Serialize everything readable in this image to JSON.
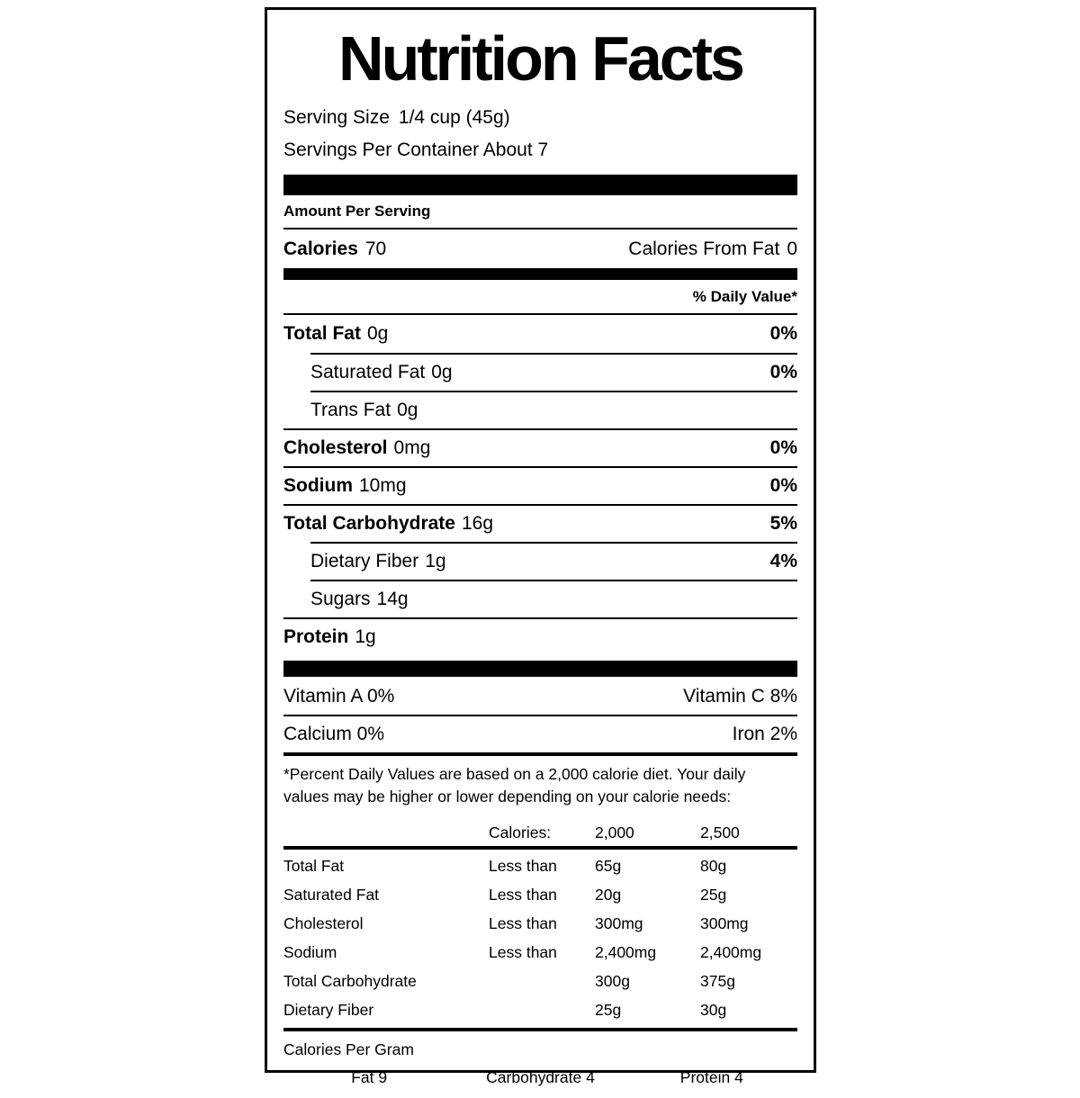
{
  "label": {
    "title": "Nutrition Facts",
    "serving_size": {
      "label": "Serving Size",
      "value": "1/4 cup (45g)"
    },
    "servings_per_container": "Servings Per Container About 7",
    "amount_per_serving": "Amount Per Serving",
    "calories": {
      "label": "Calories",
      "value": "70"
    },
    "calories_from_fat": {
      "label": "Calories From Fat",
      "value": "0"
    },
    "daily_value_header": "% Daily Value*",
    "nutrients": [
      {
        "name": "Total Fat",
        "amount": "0g",
        "dv": "0%"
      },
      {
        "name": "Saturated Fat",
        "amount": "0g",
        "dv": "0%"
      },
      {
        "name": "Trans Fat",
        "amount": "0g"
      },
      {
        "name": "Cholesterol",
        "amount": "0mg",
        "dv": "0%"
      },
      {
        "name": "Sodium",
        "amount": "10mg",
        "dv": "0%"
      },
      {
        "name": "Total Carbohydrate",
        "amount": "16g",
        "dv": "5%"
      },
      {
        "name": "Dietary Fiber",
        "amount": "1g",
        "dv": "4%"
      },
      {
        "name": "Sugars",
        "amount": "14g"
      },
      {
        "name": "Protein",
        "amount": "1g"
      }
    ],
    "vitamins": [
      {
        "left": "Vitamin A 0%",
        "right": "Vitamin C 8%"
      },
      {
        "left": "Calcium 0%",
        "right": "Iron 2%"
      }
    ],
    "footnote_line1": "*Percent Daily Values are based on a 2,000 calorie diet. Your daily",
    "footnote_line2": "values may be higher or lower depending on your calorie needs:",
    "reference_table": {
      "header": {
        "calories_label": "Calories:",
        "col_2000": "2,000",
        "col_2500": "2,500"
      },
      "rows": [
        {
          "name": "Total Fat",
          "qualifier": "Less than",
          "v2000": "65g",
          "v2500": "80g"
        },
        {
          "name": "Saturated Fat",
          "qualifier": "Less than",
          "v2000": "20g",
          "v2500": "25g"
        },
        {
          "name": "Cholesterol",
          "qualifier": "Less than",
          "v2000": "300mg",
          "v2500": "300mg"
        },
        {
          "name": "Sodium",
          "qualifier": "Less than",
          "v2000": "2,400mg",
          "v2500": "2,400mg"
        },
        {
          "name": "Total Carbohydrate",
          "qualifier": "",
          "v2000": "300g",
          "v2500": "375g"
        },
        {
          "name": "Dietary Fiber",
          "qualifier": "",
          "v2000": "25g",
          "v2500": "30g"
        }
      ]
    },
    "calories_per_gram": {
      "title": "Calories Per Gram",
      "fat": "Fat 9",
      "carbohydrate": "Carbohydrate 4",
      "protein": "Protein 4"
    }
  },
  "colors": {
    "text": "#000000",
    "background": "#ffffff",
    "rule": "#000000"
  }
}
